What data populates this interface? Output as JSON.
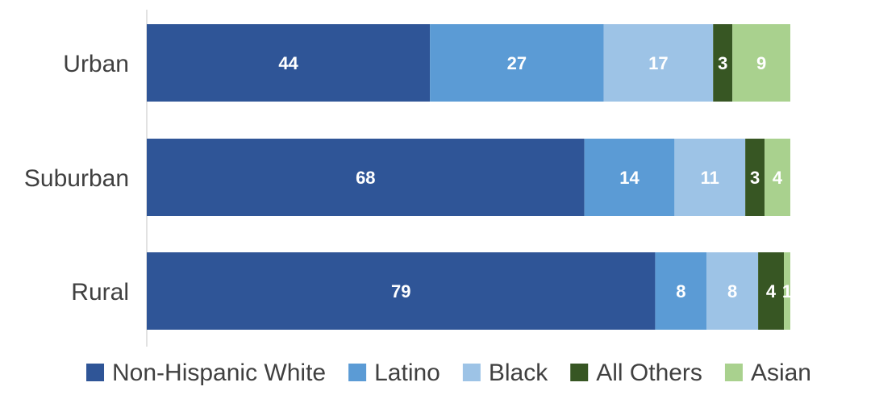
{
  "chart_data": {
    "type": "bar",
    "orientation": "horizontal",
    "stacked": true,
    "categories": [
      "Urban",
      "Suburban",
      "Rural"
    ],
    "series": [
      {
        "name": "Non-Hispanic White",
        "values": [
          44,
          68,
          79
        ],
        "color": "#2F5597"
      },
      {
        "name": "Latino",
        "values": [
          27,
          14,
          8
        ],
        "color": "#5B9BD5"
      },
      {
        "name": "Black",
        "values": [
          17,
          11,
          8
        ],
        "color": "#9DC3E6"
      },
      {
        "name": "All Others",
        "values": [
          3,
          3,
          4
        ],
        "color": "#375623"
      },
      {
        "name": "Asian",
        "values": [
          9,
          4,
          1
        ],
        "color": "#A9D18E"
      }
    ],
    "xlim": [
      0,
      100
    ],
    "title": "",
    "xlabel": "",
    "ylabel": "",
    "grid": false,
    "legend_position": "bottom",
    "data_labels": true
  }
}
